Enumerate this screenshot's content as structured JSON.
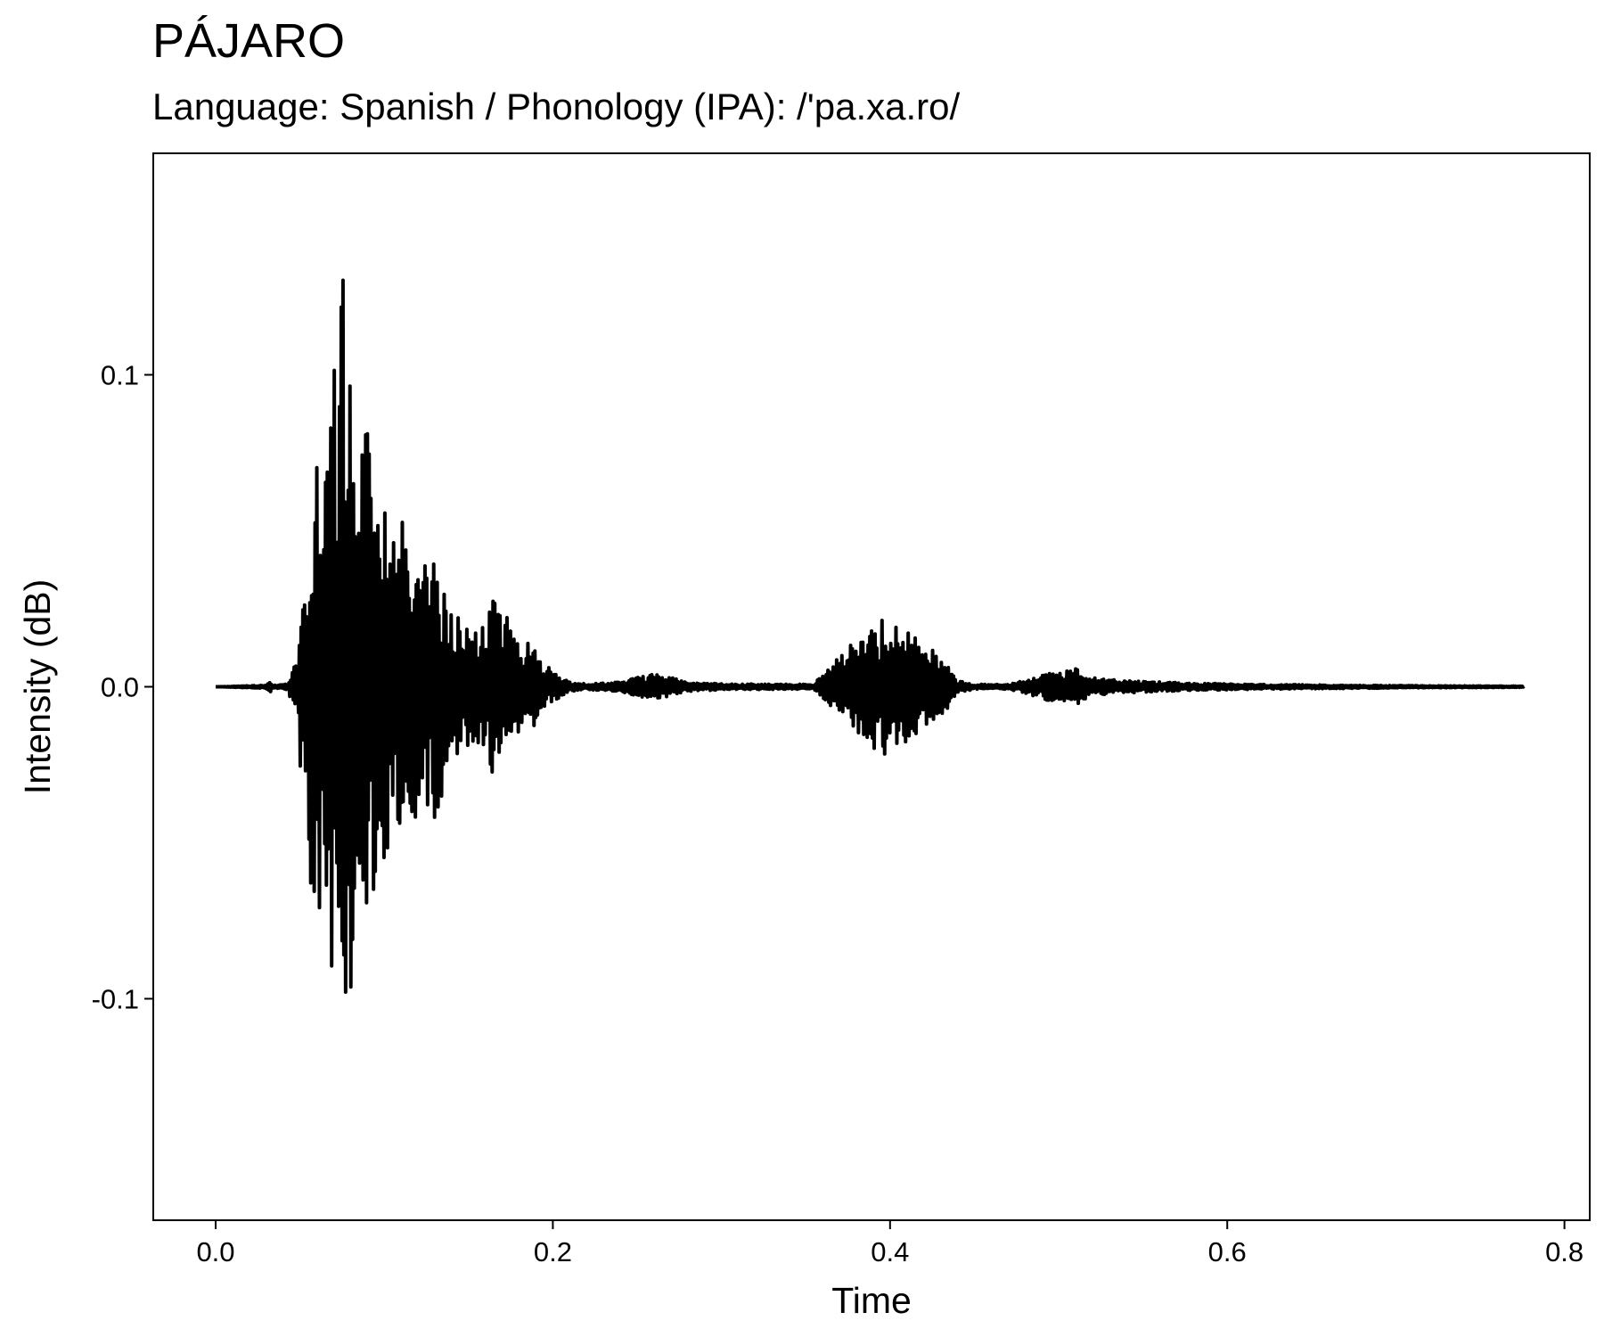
{
  "chart_data": {
    "type": "line",
    "title": "PÁJARO",
    "subtitle": "Language: Spanish / Phonology (IPA): /'pa.xa.ro/",
    "xlabel": "Time",
    "ylabel": "Intensity (dB)",
    "xlim": [
      -0.037,
      0.815
    ],
    "ylim": [
      -0.171,
      0.171
    ],
    "x_ticks": [
      {
        "value": 0.0,
        "label": "0.0"
      },
      {
        "value": 0.2,
        "label": "0.2"
      },
      {
        "value": 0.4,
        "label": "0.4"
      },
      {
        "value": 0.6,
        "label": "0.6"
      },
      {
        "value": 0.8,
        "label": "0.8"
      }
    ],
    "y_ticks": [
      {
        "value": 0.1,
        "label": "0.1"
      },
      {
        "value": 0.0,
        "label": "0.0"
      },
      {
        "value": -0.1,
        "label": "-0.1"
      }
    ],
    "grid": false,
    "legend": "none",
    "line_color": "#000000",
    "series": [
      {
        "x_start": 0.0,
        "x_end": 0.776,
        "envelope": [
          [
            0.0,
            0.0
          ],
          [
            0.03,
            0.0005
          ],
          [
            0.032,
            0.002
          ],
          [
            0.034,
            0.0005
          ],
          [
            0.043,
            0.001
          ],
          [
            0.045,
            0.006
          ],
          [
            0.049,
            0.008
          ],
          [
            0.05,
            0.033
          ],
          [
            0.055,
            0.045
          ],
          [
            0.057,
            0.072
          ],
          [
            0.062,
            0.075
          ],
          [
            0.066,
            0.078
          ],
          [
            0.07,
            0.1
          ],
          [
            0.072,
            0.118
          ],
          [
            0.075,
            0.155
          ],
          [
            0.078,
            0.105
          ],
          [
            0.083,
            0.1
          ],
          [
            0.085,
            0.06
          ],
          [
            0.088,
            0.088
          ],
          [
            0.092,
            0.075
          ],
          [
            0.097,
            0.062
          ],
          [
            0.1,
            0.06
          ],
          [
            0.105,
            0.048
          ],
          [
            0.11,
            0.055
          ],
          [
            0.115,
            0.04
          ],
          [
            0.12,
            0.045
          ],
          [
            0.125,
            0.04
          ],
          [
            0.13,
            0.042
          ],
          [
            0.135,
            0.035
          ],
          [
            0.14,
            0.03
          ],
          [
            0.145,
            0.022
          ],
          [
            0.15,
            0.02
          ],
          [
            0.155,
            0.018
          ],
          [
            0.16,
            0.02
          ],
          [
            0.165,
            0.03
          ],
          [
            0.17,
            0.025
          ],
          [
            0.175,
            0.02
          ],
          [
            0.18,
            0.015
          ],
          [
            0.185,
            0.014
          ],
          [
            0.19,
            0.012
          ],
          [
            0.195,
            0.008
          ],
          [
            0.2,
            0.005
          ],
          [
            0.205,
            0.003
          ],
          [
            0.21,
            0.0015
          ],
          [
            0.22,
            0.001
          ],
          [
            0.24,
            0.0015
          ],
          [
            0.25,
            0.003
          ],
          [
            0.26,
            0.004
          ],
          [
            0.27,
            0.003
          ],
          [
            0.28,
            0.0015
          ],
          [
            0.3,
            0.001
          ],
          [
            0.34,
            0.0008
          ],
          [
            0.355,
            0.001
          ],
          [
            0.36,
            0.004
          ],
          [
            0.37,
            0.01
          ],
          [
            0.38,
            0.015
          ],
          [
            0.39,
            0.02
          ],
          [
            0.395,
            0.023
          ],
          [
            0.4,
            0.02
          ],
          [
            0.41,
            0.018
          ],
          [
            0.42,
            0.014
          ],
          [
            0.43,
            0.012
          ],
          [
            0.435,
            0.007
          ],
          [
            0.44,
            0.002
          ],
          [
            0.45,
            0.0008
          ],
          [
            0.47,
            0.0008
          ],
          [
            0.48,
            0.002
          ],
          [
            0.49,
            0.004
          ],
          [
            0.5,
            0.005
          ],
          [
            0.51,
            0.006
          ],
          [
            0.52,
            0.003
          ],
          [
            0.54,
            0.002
          ],
          [
            0.58,
            0.0012
          ],
          [
            0.62,
            0.0008
          ],
          [
            0.7,
            0.0004
          ],
          [
            0.776,
            0.0002
          ]
        ]
      }
    ]
  }
}
